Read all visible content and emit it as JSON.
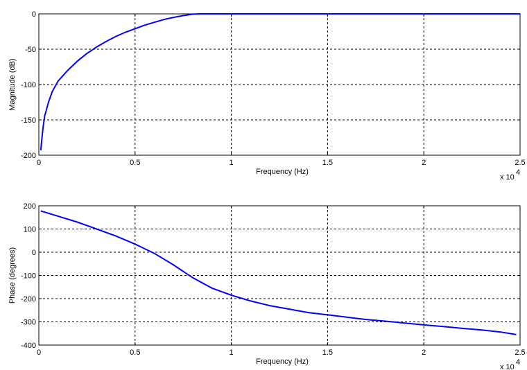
{
  "chart_data": [
    {
      "type": "line",
      "xlabel": "Frequency (Hz)",
      "ylabel": "Magnitude (dB)",
      "x_exponent_label": "x 10",
      "x_exponent": "4",
      "xlim": [
        0,
        2.5
      ],
      "ylim": [
        -200,
        0
      ],
      "x_ticks": [
        0,
        0.5,
        1,
        1.5,
        2,
        2.5
      ],
      "x_tick_labels": [
        "0",
        "0.5",
        "1",
        "1.5",
        "2",
        "2.5"
      ],
      "y_ticks": [
        -200,
        -150,
        -100,
        -50,
        0
      ],
      "y_tick_labels": [
        "-200",
        "-150",
        "-100",
        "-50",
        "0"
      ],
      "grid": true,
      "series": [
        {
          "color": "#0000ff",
          "x": [
            0.01,
            0.02,
            0.03,
            0.05,
            0.07,
            0.1,
            0.15,
            0.2,
            0.25,
            0.3,
            0.35,
            0.4,
            0.45,
            0.5,
            0.55,
            0.6,
            0.65,
            0.7,
            0.75,
            0.8,
            0.83,
            1.0,
            1.5,
            2.0,
            2.5
          ],
          "y": [
            -193,
            -165,
            -145,
            -125,
            -110,
            -95,
            -80,
            -67,
            -56,
            -47,
            -39,
            -32,
            -26,
            -21,
            -16,
            -12,
            -8,
            -5,
            -2.5,
            -0.5,
            0,
            0,
            0,
            0,
            0
          ]
        }
      ]
    },
    {
      "type": "line",
      "xlabel": "Frequency (Hz)",
      "ylabel": "Phase (degrees)",
      "x_exponent_label": "x 10",
      "x_exponent": "4",
      "xlim": [
        0,
        2.5
      ],
      "ylim": [
        -400,
        200
      ],
      "x_ticks": [
        0,
        0.5,
        1,
        1.5,
        2,
        2.5
      ],
      "x_tick_labels": [
        "0",
        "0.5",
        "1",
        "1.5",
        "2",
        "2.5"
      ],
      "y_ticks": [
        -400,
        -300,
        -200,
        -100,
        0,
        100,
        200
      ],
      "y_tick_labels": [
        "-400",
        "-300",
        "-200",
        "-100",
        "0",
        "100",
        "200"
      ],
      "grid": true,
      "series": [
        {
          "color": "#0000ff",
          "x": [
            0.01,
            0.1,
            0.2,
            0.3,
            0.4,
            0.5,
            0.55,
            0.6,
            0.7,
            0.8,
            0.9,
            1.0,
            1.1,
            1.2,
            1.3,
            1.4,
            1.5,
            1.6,
            1.7,
            1.8,
            1.9,
            2.0,
            2.1,
            2.2,
            2.3,
            2.4,
            2.48
          ],
          "y": [
            178,
            155,
            130,
            100,
            70,
            35,
            15,
            -5,
            -55,
            -110,
            -155,
            -185,
            -210,
            -230,
            -245,
            -260,
            -270,
            -280,
            -290,
            -297,
            -305,
            -313,
            -320,
            -328,
            -335,
            -344,
            -355
          ]
        }
      ]
    }
  ]
}
